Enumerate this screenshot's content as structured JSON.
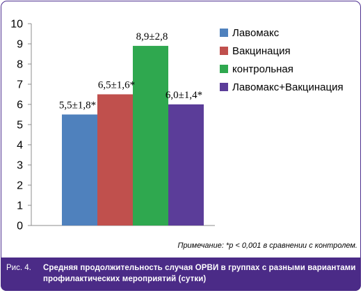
{
  "chart_data": {
    "type": "bar",
    "categories": [
      ""
    ],
    "series": [
      {
        "name": "Лавомакс",
        "value": 5.5,
        "label": "5,5±1,8*",
        "color": "#4f81bd"
      },
      {
        "name": "Вакцинация",
        "value": 6.5,
        "label": "6,5±1,6*",
        "color": "#c0504d"
      },
      {
        "name": "контрольная",
        "value": 8.9,
        "label": "8,9±2,8",
        "color": "#2fa84f"
      },
      {
        "name": "Лавомакс+Вакцинация",
        "value": 6.0,
        "label": "6,0±1,4*",
        "color": "#5b3d99"
      }
    ],
    "ylim": [
      0,
      10
    ],
    "yticks": [
      "0",
      "1",
      "2",
      "3",
      "4",
      "5",
      "6",
      "7",
      "8",
      "9",
      "10"
    ],
    "grid": false,
    "legend_position": "right",
    "xlabel": "",
    "ylabel": ""
  },
  "note": "Примечание: *p < 0,001 в сравнении с контролем.",
  "caption": {
    "label": "Рис. 4.",
    "text": "Средняя продолжительность случая ОРВИ в группах с разными вариантами профилактических мероприятий (сутки)"
  },
  "colors": {
    "caption_background": "#4b2b87",
    "frame_border": "#4d2f8f"
  }
}
